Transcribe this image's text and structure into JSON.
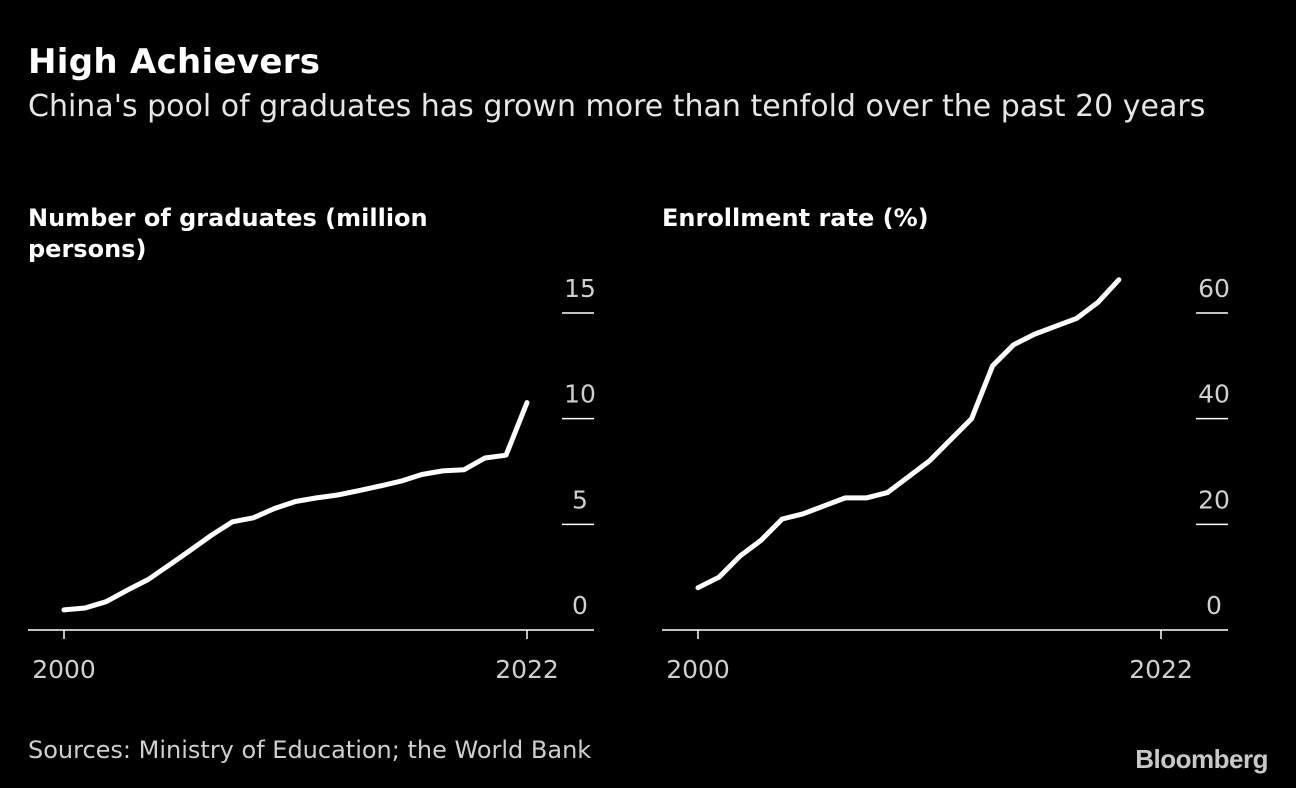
{
  "header": {
    "title": "High Achievers",
    "subtitle": "China's pool of graduates has grown more than tenfold over the past 20 years"
  },
  "footer": {
    "source": "Sources: Ministry of Education; the World Bank",
    "logo": "Bloomberg"
  },
  "colors": {
    "background": "#000000",
    "line": "#ffffff",
    "axis": "#ffffff",
    "tick_text": "#d0d0d0"
  },
  "chart_data": [
    {
      "type": "line",
      "title": "Number of graduates (million persons)",
      "xlabel": "",
      "ylabel": "",
      "x": [
        2000,
        2001,
        2002,
        2003,
        2004,
        2005,
        2006,
        2007,
        2008,
        2009,
        2010,
        2011,
        2012,
        2013,
        2014,
        2015,
        2016,
        2017,
        2018,
        2019,
        2020,
        2021,
        2022
      ],
      "series": [
        {
          "values": [
            0.95,
            1.04,
            1.34,
            1.88,
            2.39,
            3.07,
            3.77,
            4.48,
            5.12,
            5.31,
            5.75,
            6.08,
            6.25,
            6.39,
            6.59,
            6.81,
            7.04,
            7.36,
            7.53,
            7.58,
            8.14,
            8.27,
            10.76
          ]
        }
      ],
      "xlim": [
        2000,
        2022
      ],
      "ylim": [
        0,
        15
      ],
      "x_ticks": [
        "2000",
        "2022"
      ],
      "y_ticks": [
        "0",
        "5",
        "10",
        "15"
      ],
      "grid": false
    },
    {
      "type": "line",
      "title": "Enrollment rate (%)",
      "xlabel": "",
      "ylabel": "",
      "x": [
        2000,
        2001,
        2002,
        2003,
        2004,
        2005,
        2006,
        2007,
        2008,
        2009,
        2010,
        2011,
        2012,
        2013,
        2014,
        2015,
        2016,
        2017,
        2018,
        2019,
        2020
      ],
      "series": [
        {
          "values": [
            8,
            10,
            14,
            17,
            21,
            22,
            23.5,
            25,
            25,
            26,
            29,
            32,
            36,
            40,
            50,
            54,
            56,
            57.5,
            59,
            62,
            66.3
          ]
        }
      ],
      "xlim": [
        2000,
        2022
      ],
      "ylim": [
        0,
        60
      ],
      "x_ticks": [
        "2000",
        "2022"
      ],
      "y_ticks": [
        "0",
        "20",
        "40",
        "60"
      ],
      "grid": false
    }
  ]
}
